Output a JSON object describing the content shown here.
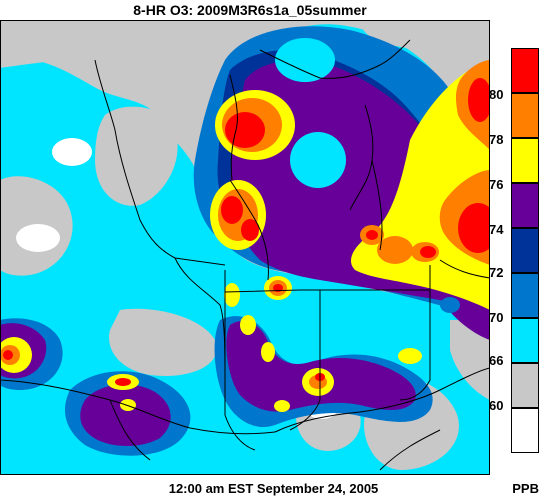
{
  "title": "8-HR O3: 2009M3R6s1a_05summer",
  "timestamp": "12:00 am EST September 24, 2005",
  "unit": "PPB",
  "legend": {
    "bins": [
      {
        "label": "",
        "color": "#ff0000"
      },
      {
        "label": "80",
        "color": "#ff8000"
      },
      {
        "label": "78",
        "color": "#ffff00"
      },
      {
        "label": "76",
        "color": "#660099"
      },
      {
        "label": "74",
        "color": "#003399"
      },
      {
        "label": "72",
        "color": "#0077cc"
      },
      {
        "label": "70",
        "color": "#00e5ff"
      },
      {
        "label": "66",
        "color": "#c8c8c8"
      },
      {
        "label": "60",
        "color": "#ffffff"
      }
    ]
  },
  "colors": {
    "bg": "#c8c8c8",
    "cyan": "#00e5ff",
    "blue": "#0077cc",
    "navy": "#003399",
    "purple": "#660099",
    "yellow": "#ffff00",
    "orange": "#ff8000",
    "red": "#ff0000",
    "white": "#ffffff",
    "border": "#000000"
  }
}
